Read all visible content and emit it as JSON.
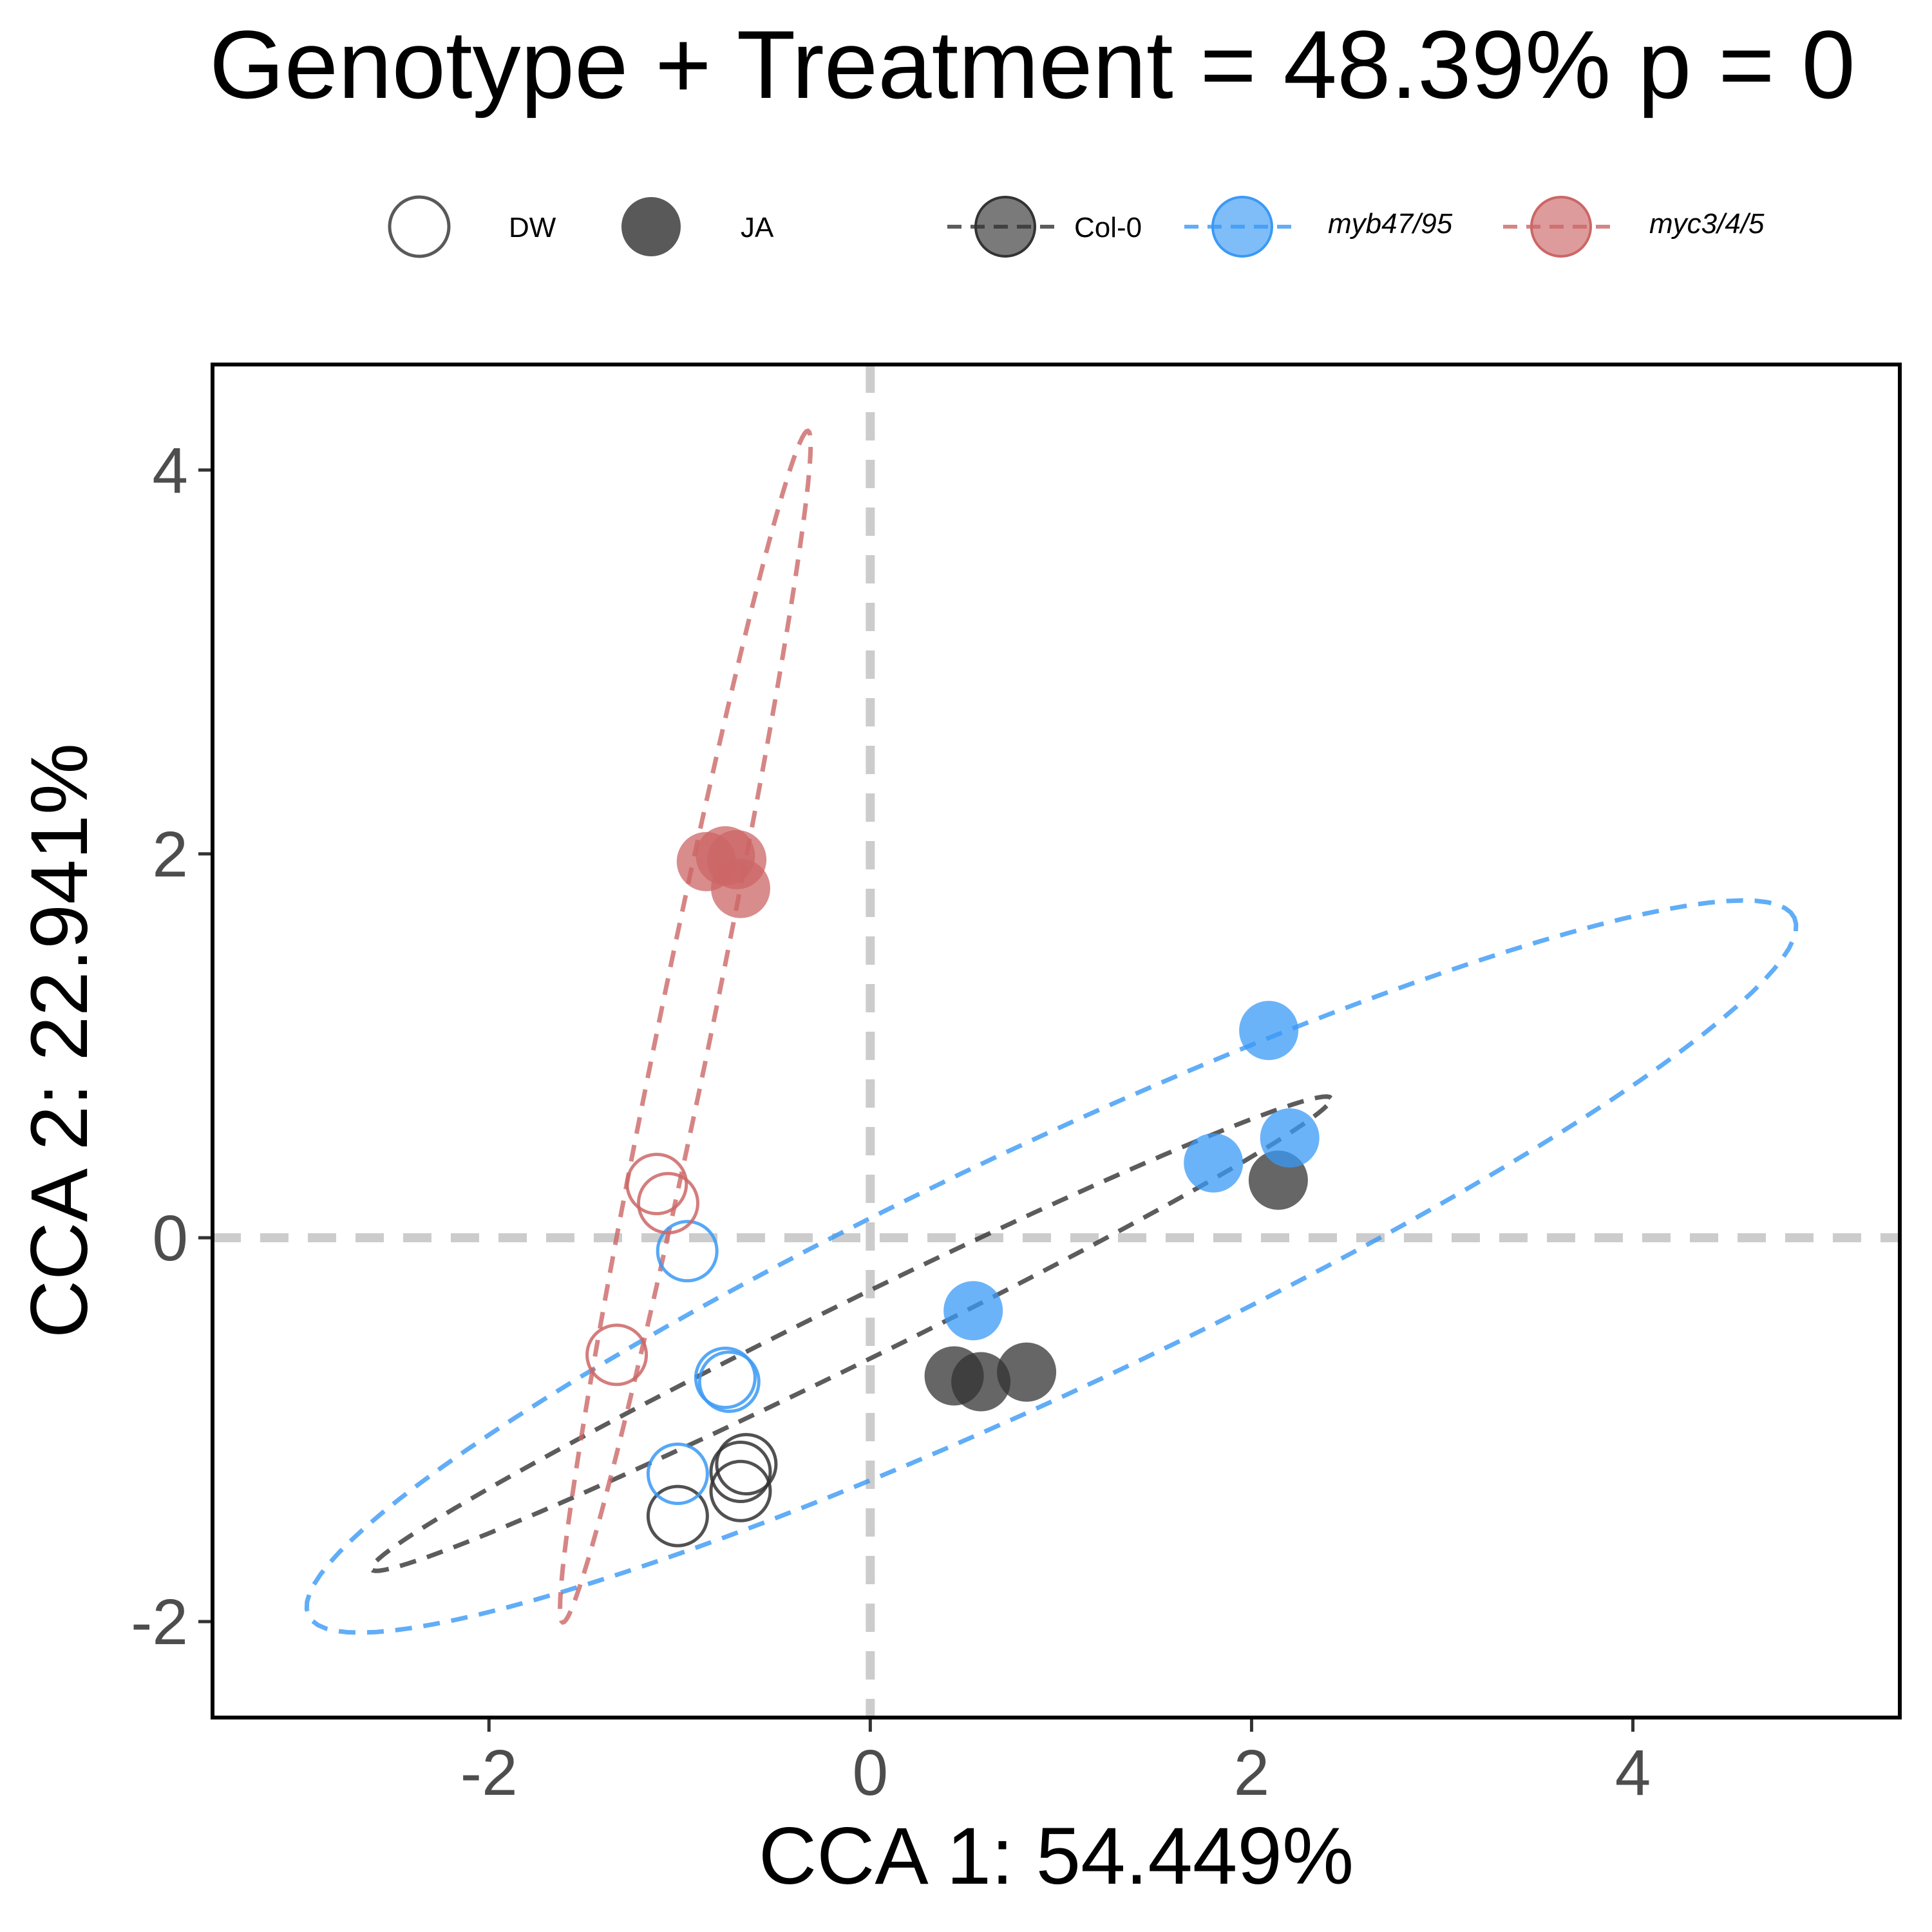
{
  "chart_data": {
    "type": "scatter",
    "title": "Genotype + Treatment = 48.39% p = 0",
    "xlabel": "CCA 1: 54.449%",
    "ylabel": "CCA 2: 22.941%",
    "xlim": [
      -3.45,
      5.4
    ],
    "ylim": [
      -2.5,
      4.55
    ],
    "x_ticks": [
      -2,
      0,
      2,
      4
    ],
    "y_ticks": [
      -2,
      0,
      2,
      4
    ],
    "x_tick_labels": [
      "-2",
      "0",
      "2",
      "4"
    ],
    "y_tick_labels": [
      "-2",
      "0",
      "2",
      "4"
    ],
    "reference_lines": {
      "x": 0,
      "y": 0,
      "style": "dashed",
      "color": "#cccccc"
    },
    "grid": false,
    "legend_position": "top",
    "legend": {
      "treatment": [
        {
          "label": "DW",
          "shape": "open-circle"
        },
        {
          "label": "JA",
          "shape": "filled-circle"
        }
      ],
      "genotype": [
        {
          "label": "Col-0",
          "color": "#333333",
          "italic": false
        },
        {
          "label": "myb47/95",
          "color": "#3a99f5",
          "italic": true
        },
        {
          "label": "myc3/4/5",
          "color": "#cc6666",
          "italic": true
        }
      ]
    },
    "series": [
      {
        "name": "Col-0",
        "color": "#333333",
        "points": [
          {
            "x": -0.65,
            "y": -1.18,
            "treatment": "DW"
          },
          {
            "x": -0.68,
            "y": -1.22,
            "treatment": "DW"
          },
          {
            "x": -0.68,
            "y": -1.32,
            "treatment": "DW"
          },
          {
            "x": -1.01,
            "y": -1.45,
            "treatment": "DW"
          },
          {
            "x": 0.44,
            "y": -0.72,
            "treatment": "JA"
          },
          {
            "x": 0.58,
            "y": -0.75,
            "treatment": "JA"
          },
          {
            "x": 0.82,
            "y": -0.7,
            "treatment": "JA"
          },
          {
            "x": 2.14,
            "y": 0.3,
            "treatment": "JA"
          }
        ],
        "ellipse": {
          "cx": -0.1,
          "cy": -0.5,
          "a": 2.8,
          "b": 0.16,
          "angle_deg": 26
        }
      },
      {
        "name": "myb47/95",
        "color": "#3a99f5",
        "points": [
          {
            "x": -0.96,
            "y": -0.07,
            "treatment": "DW"
          },
          {
            "x": -0.76,
            "y": -0.73,
            "treatment": "DW"
          },
          {
            "x": -0.74,
            "y": -0.75,
            "treatment": "DW"
          },
          {
            "x": -1.01,
            "y": -1.23,
            "treatment": "DW"
          },
          {
            "x": 0.54,
            "y": -0.38,
            "treatment": "JA"
          },
          {
            "x": 1.8,
            "y": 0.39,
            "treatment": "JA"
          },
          {
            "x": 2.09,
            "y": 1.08,
            "treatment": "JA"
          },
          {
            "x": 2.2,
            "y": 0.52,
            "treatment": "JA"
          }
        ],
        "ellipse": {
          "cx": 0.95,
          "cy": -0.15,
          "a": 4.3,
          "b": 0.64,
          "angle_deg": 25
        }
      },
      {
        "name": "myc3/4/5",
        "color": "#cc6666",
        "points": [
          {
            "x": -1.12,
            "y": 0.28,
            "treatment": "DW"
          },
          {
            "x": -1.06,
            "y": 0.18,
            "treatment": "DW"
          },
          {
            "x": -1.33,
            "y": -0.61,
            "treatment": "DW"
          },
          {
            "x": -0.86,
            "y": 1.96,
            "treatment": "JA"
          },
          {
            "x": -0.76,
            "y": 1.99,
            "treatment": "JA"
          },
          {
            "x": -0.7,
            "y": 1.97,
            "treatment": "JA"
          },
          {
            "x": -0.68,
            "y": 1.82,
            "treatment": "JA"
          }
        ],
        "ellipse": {
          "cx": -0.97,
          "cy": 1.1,
          "a": 3.17,
          "b": 0.14,
          "angle_deg": 78.3
        }
      }
    ]
  }
}
